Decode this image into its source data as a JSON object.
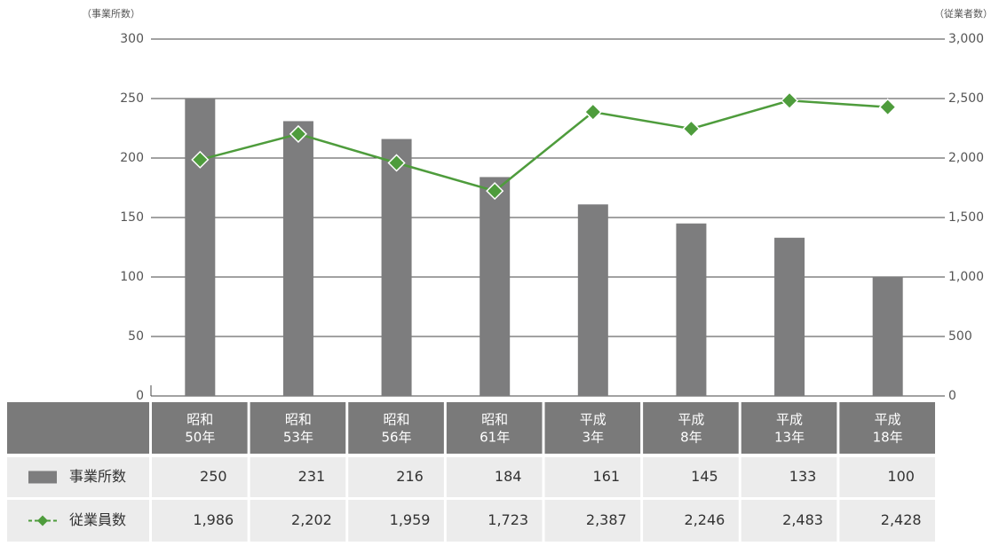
{
  "chart_data": {
    "type": "bar_line",
    "y_label": "（事業所数）",
    "y2_label": "（従業者数）",
    "categories": [
      [
        "昭和",
        "50年"
      ],
      [
        "昭和",
        "53年"
      ],
      [
        "昭和",
        "56年"
      ],
      [
        "昭和",
        "61年"
      ],
      [
        "平成",
        "3年"
      ],
      [
        "平成",
        "8年"
      ],
      [
        "平成",
        "13年"
      ],
      [
        "平成",
        "18年"
      ]
    ],
    "series": [
      {
        "name": "事業所数",
        "type": "bar",
        "color": "#7d7d7e",
        "values": [
          250,
          231,
          216,
          184,
          161,
          145,
          133,
          100
        ]
      },
      {
        "name": "従業員数",
        "type": "line",
        "axis": "y2",
        "color": "#4e9c3c",
        "values": [
          1986,
          2202,
          1959,
          1723,
          2387,
          2246,
          2483,
          2428
        ],
        "value_labels": [
          "1,986",
          "2,202",
          "1,959",
          "1,723",
          "2,387",
          "2,246",
          "2,483",
          "2,428"
        ]
      }
    ],
    "ylim": [
      0,
      300
    ],
    "yticks": [
      0,
      50,
      100,
      150,
      200,
      250,
      300
    ],
    "y2lim": [
      0,
      3000
    ],
    "y2ticks": [
      0,
      500,
      {
        "value": 1000,
        "label": "1,000"
      },
      {
        "value": 1500,
        "label": "1,500"
      },
      {
        "value": 2000,
        "label": "2,000"
      },
      {
        "value": 2500,
        "label": "2,500"
      },
      {
        "value": 3000,
        "label": "3,000"
      }
    ],
    "grid": true
  }
}
